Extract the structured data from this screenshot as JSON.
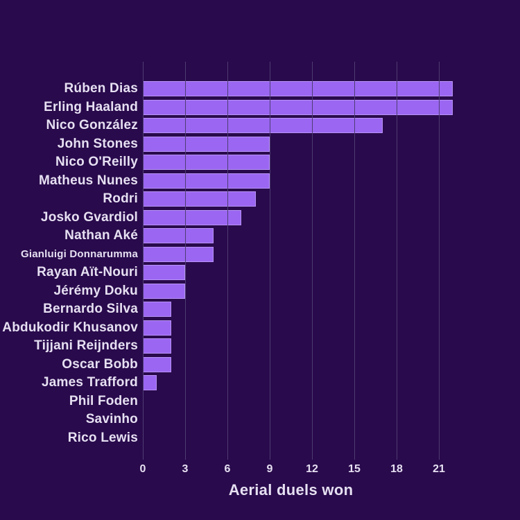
{
  "figure": {
    "background_color": "#290a4c"
  },
  "chart_data": {
    "type": "bar",
    "orientation": "horizontal",
    "title": "",
    "xlabel": "Aerial duels won",
    "ylabel": "",
    "categories": [
      "Rúben Dias",
      "Erling Haaland",
      "Nico González",
      "John Stones",
      "Nico O'Reilly",
      "Matheus Nunes",
      "Rodri",
      "Josko Gvardiol",
      "Nathan Aké",
      "Gianluigi Donnarumma",
      "Rayan Aït-Nouri",
      "Jérémy Doku",
      "Bernardo Silva",
      "Abdukodir Khusanov",
      "Tijjani Reijnders",
      "Oscar Bobb",
      "James Trafford",
      "Phil Foden",
      "Savinho",
      "Rico Lewis"
    ],
    "values": [
      22,
      22,
      17,
      9,
      9,
      9,
      8,
      7,
      5,
      5,
      3,
      3,
      2,
      2,
      2,
      2,
      1,
      0,
      0,
      0
    ],
    "xticks": [
      0,
      3,
      6,
      9,
      12,
      15,
      18,
      21
    ],
    "xlim": [
      0,
      22.5
    ],
    "grid": "vertical",
    "legend_position": "none",
    "colors": {
      "background": "#290a4c",
      "bar": "#9b66f2",
      "bar_edge": "#b893f6",
      "grid": "#4e3d72",
      "text": "#e6e0f2"
    }
  }
}
